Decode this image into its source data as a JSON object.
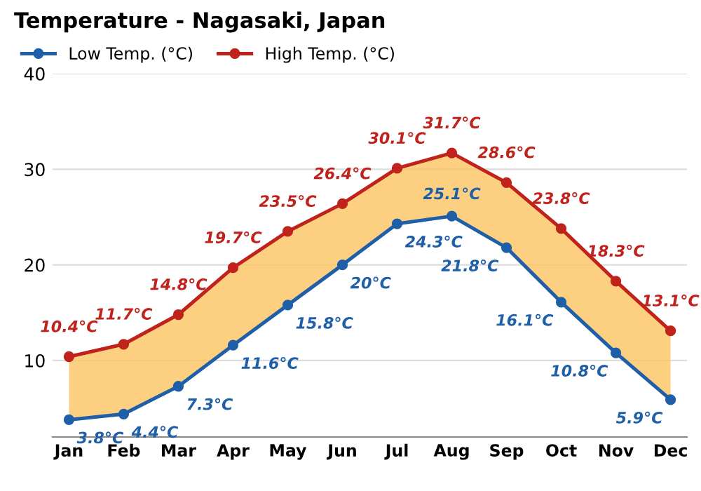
{
  "chart_data": {
    "type": "line",
    "title": "Temperature - Nagasaki, Japan",
    "categories": [
      "Jan",
      "Feb",
      "Mar",
      "Apr",
      "May",
      "Jun",
      "Jul",
      "Aug",
      "Sep",
      "Oct",
      "Nov",
      "Dec"
    ],
    "series": [
      {
        "name": "Low Temp. (°C)",
        "color": "#1f5fa8",
        "values": [
          3.8,
          4.4,
          7.3,
          11.6,
          15.8,
          20,
          24.3,
          25.1,
          21.8,
          16.1,
          10.8,
          5.9
        ],
        "value_labels": [
          "3.8°C",
          "4.4°C",
          "7.3°C",
          "11.6°C",
          "15.8°C",
          "20°C",
          "24.3°C",
          "25.1°C",
          "21.8°C",
          "16.1°C",
          "10.8°C",
          "5.9°C"
        ]
      },
      {
        "name": "High Temp. (°C)",
        "color": "#c0221c",
        "values": [
          10.4,
          11.7,
          14.8,
          19.7,
          23.5,
          26.4,
          30.1,
          31.7,
          28.6,
          23.8,
          18.3,
          13.1
        ],
        "value_labels": [
          "10.4°C",
          "11.7°C",
          "14.8°C",
          "19.7°C",
          "23.5°C",
          "26.4°C",
          "30.1°C",
          "31.7°C",
          "28.6°C",
          "23.8°C",
          "18.3°C",
          "13.1°C"
        ],
        "lower": [
          3.8,
          4.4,
          7.3,
          11.6,
          15.8,
          20,
          24.3,
          25.1,
          21.8,
          16.1,
          10.8,
          5.9
        ],
        "upper": [
          10.4,
          11.7,
          14.8,
          19.7,
          23.5,
          26.4,
          30.1,
          31.7,
          28.6,
          23.8,
          18.3,
          13.1
        ]
      }
    ],
    "ylim": [
      2,
      40
    ],
    "yticks": [
      10,
      20,
      30,
      40
    ],
    "grid": "y",
    "legend": "top left",
    "marker": "circle",
    "line_style": "solid"
  }
}
